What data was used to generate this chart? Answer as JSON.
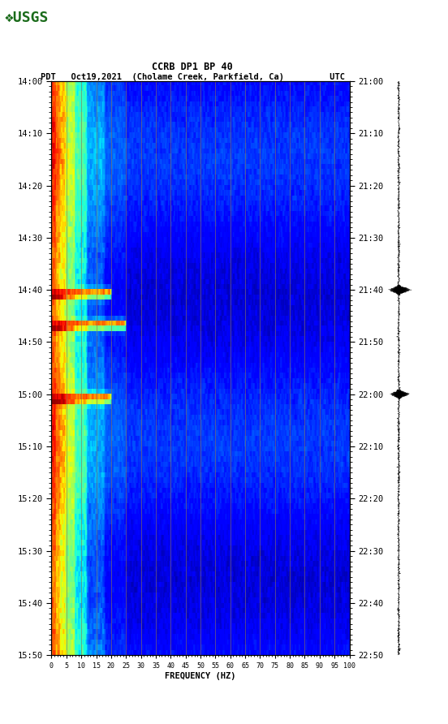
{
  "title_line1": "CCRB DP1 BP 40",
  "title_line2": "PDT   Oct19,2021  (Cholame Creek, Parkfield, Ca)         UTC",
  "xlabel": "FREQUENCY (HZ)",
  "freq_min": 0,
  "freq_max": 100,
  "freq_ticks": [
    0,
    5,
    10,
    15,
    20,
    25,
    30,
    35,
    40,
    45,
    50,
    55,
    60,
    65,
    70,
    75,
    80,
    85,
    90,
    95,
    100
  ],
  "time_ticks_pdt": [
    "14:00",
    "14:10",
    "14:20",
    "14:30",
    "14:40",
    "14:50",
    "15:00",
    "15:10",
    "15:20",
    "15:30",
    "15:40",
    "15:50"
  ],
  "time_ticks_utc": [
    "21:00",
    "21:10",
    "21:20",
    "21:30",
    "21:40",
    "21:50",
    "22:00",
    "22:10",
    "22:20",
    "22:30",
    "22:40",
    "22:50"
  ],
  "vertical_lines_freq": [
    5,
    10,
    15,
    20,
    25,
    30,
    35,
    40,
    45,
    50,
    55,
    60,
    65,
    70,
    75,
    80,
    85,
    90,
    95
  ],
  "vline_color": "#8B7355",
  "background_color": "#ffffff",
  "logo_color": "#1a6b1a",
  "eq_times_min": [
    40,
    46,
    60
  ],
  "eq_freq_extent_hz": [
    20,
    25,
    20
  ],
  "n_time_minutes": 110,
  "n_freq_bins": 400
}
